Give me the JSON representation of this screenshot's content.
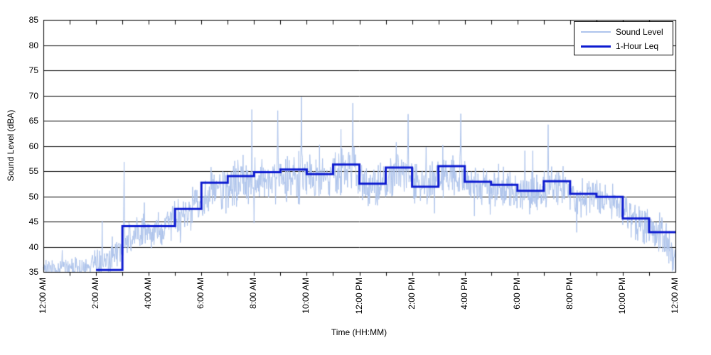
{
  "figure": {
    "background": "#ffffff",
    "axis_color": "#000000",
    "grid_color": "#000000"
  },
  "chart_data": {
    "type": "line",
    "title": "",
    "xlabel": "Time (HH:MM)",
    "ylabel": "Sound Level (dBA)",
    "grid": {
      "horizontal": true,
      "vertical": false
    },
    "x_axis": {
      "unit": "hours",
      "range_hours": [
        0,
        24
      ],
      "major_tick_interval_hours": 2,
      "minor_tick_interval_hours": 1,
      "tick_labels": [
        "12:00 AM",
        "2:00 AM",
        "4:00 AM",
        "6:00 AM",
        "8:00 AM",
        "10:00 AM",
        "12:00 PM",
        "2:00 PM",
        "4:00 PM",
        "6:00 PM",
        "8:00 PM",
        "10:00 PM",
        "12:00 AM"
      ]
    },
    "y_axis": {
      "range": [
        35,
        85
      ],
      "tick_interval": 5,
      "tick_labels": [
        "35",
        "40",
        "45",
        "50",
        "55",
        "60",
        "65",
        "70",
        "75",
        "80",
        "85"
      ]
    },
    "legend": {
      "position": "top-right",
      "entries": [
        {
          "label": "Sound Level",
          "color": "#aec4ec",
          "line_width": 1
        },
        {
          "label": "1-Hour Leq",
          "color": "#0d1bd0",
          "line_width": 3
        }
      ]
    },
    "series": [
      {
        "name": "Sound Level",
        "color": "#aec4ec",
        "line_width": 1,
        "sampling": "1-minute samples, values below 35 dBA clipped at axis",
        "hourly_envelope": {
          "mean_dba": [
            35.7,
            35.9,
            37.8,
            43.2,
            43.6,
            46.8,
            51.8,
            53.2,
            53.6,
            53.8,
            53.6,
            55.2,
            51.8,
            54.6,
            51.6,
            54.6,
            52.2,
            51.6,
            50.6,
            52.0,
            49.6,
            49.0,
            45.2,
            42.0
          ],
          "spread_dba": [
            1.3,
            1.7,
            2.4,
            2.7,
            2.7,
            2.7,
            3.4,
            3.4,
            3.4,
            3.6,
            3.4,
            3.4,
            3.1,
            3.4,
            3.1,
            3.4,
            3.1,
            3.1,
            3.0,
            3.1,
            3.1,
            3.1,
            3.1,
            2.9
          ],
          "spike_max_dba": [
            41,
            44,
            47,
            53,
            50,
            54,
            61,
            64,
            65,
            64,
            63,
            65,
            60,
            64,
            61,
            64,
            62,
            61,
            59,
            62,
            59,
            56,
            53,
            50
          ]
        },
        "end_of_day_mean_dba": 37.5,
        "notable_peaks": [
          {
            "hour": 3.07,
            "dba": 56.8
          },
          {
            "hour": 8.9,
            "dba": 67.0
          },
          {
            "hour": 9.8,
            "dba": 69.7
          },
          {
            "hour": 11.75,
            "dba": 68.5
          },
          {
            "hour": 13.85,
            "dba": 66.3
          },
          {
            "hour": 15.85,
            "dba": 66.4
          },
          {
            "hour": 19.17,
            "dba": 64.2
          }
        ]
      },
      {
        "name": "1-Hour Leq",
        "color": "#0d1bd0",
        "line_width": 3,
        "hourly_leq_dba": [
          null,
          null,
          35.4,
          44.1,
          44.1,
          47.5,
          52.7,
          54.0,
          54.8,
          55.3,
          54.4,
          56.3,
          52.5,
          55.7,
          51.9,
          56.0,
          52.9,
          52.3,
          51.1,
          53.0,
          50.5,
          49.9,
          45.6,
          42.9
        ]
      }
    ]
  }
}
